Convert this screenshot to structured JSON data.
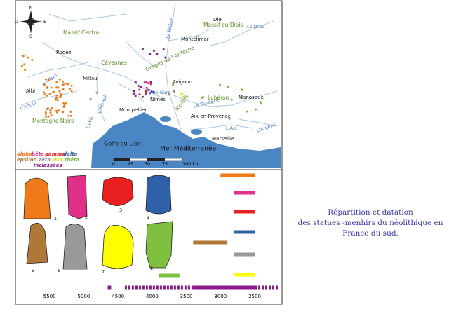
{
  "map": {
    "compass": [
      "N",
      "O",
      "E",
      "S"
    ],
    "labels": [
      "Die",
      "Massif du Diois",
      "Le Drac",
      "Massif Central",
      "Le Rhône",
      "Montélimar",
      "Rodez",
      "Cévennes",
      "Gorges de l'Ardèche",
      "Le Tarn",
      "Millau",
      "Albi",
      "Avignon",
      "Lubéron",
      "Manosque",
      "Le Gard",
      "Nîmes",
      "L'Hérault",
      "Montpellier",
      "L'Agoût",
      "Alpilles",
      "La Durance",
      "Aix-en-Provence",
      "Montagne Noire",
      "L'Orb",
      "L'Arc",
      "L'Argens",
      "Marseille",
      "Golfe du Lion",
      "Mer Méditerranée"
    ],
    "scale": [
      "0",
      "25",
      "50",
      "75",
      "100 km"
    ]
  },
  "legend": [
    {
      "label": "alpha",
      "color": "#f07a1a"
    },
    {
      "label": "bêta",
      "color": "#e0308a"
    },
    {
      "label": "gamma",
      "color": "#e82020"
    },
    {
      "label": "delta",
      "color": "#3060a8"
    },
    {
      "label": "epsilon",
      "color": "#b07838"
    },
    {
      "label": "zêta",
      "color": "#999999"
    },
    {
      "label": "êta",
      "color": "#e8e000"
    },
    {
      "label": "thêta",
      "color": "#78b840"
    },
    {
      "label": "inclassées",
      "color": "#8a1a8a"
    }
  ],
  "figures": [
    "1",
    "2",
    "3",
    "4",
    "5",
    "6",
    "7",
    "8"
  ],
  "timeline": {
    "xlim": [
      6000,
      2100
    ],
    "xticks": [
      5500,
      5000,
      4500,
      4000,
      3500,
      3000,
      2500
    ],
    "bars": [
      {
        "color": "#f07a1a",
        "start": 3000,
        "end": 2500,
        "style": "solid"
      },
      {
        "color": "#e0308a",
        "start": 2800,
        "end": 2500,
        "style": "solid"
      },
      {
        "color": "#e82020",
        "start": 2800,
        "end": 2500,
        "style": "solid"
      },
      {
        "color": "#3060a8",
        "start": 2800,
        "end": 2500,
        "style": "solid"
      },
      {
        "color": "#b07838",
        "start": 3400,
        "end": 2900,
        "style": "solid"
      },
      {
        "color": "#999999",
        "start": 2800,
        "end": 2500,
        "style": "solid"
      },
      {
        "color": "#ffff00",
        "start": 2800,
        "end": 2500,
        "style": "solid"
      },
      {
        "color": "#80c040",
        "start": 3900,
        "end": 3600,
        "style": "solid"
      },
      {
        "color": "#8a1a8a",
        "start": 4650,
        "end": 4600,
        "style": "solid"
      },
      {
        "color": "#8a1a8a",
        "start": 4400,
        "end": 3400,
        "style": "dashed"
      },
      {
        "color": "#8a1a8a",
        "start": 3400,
        "end": 2500,
        "style": "solid"
      },
      {
        "color": "#8a1a8a",
        "start": 2500,
        "end": 2150,
        "style": "dashed"
      }
    ]
  },
  "caption": [
    "Répartition et datation",
    "des statues -menhirs du néolithique en",
    "France du sud."
  ]
}
